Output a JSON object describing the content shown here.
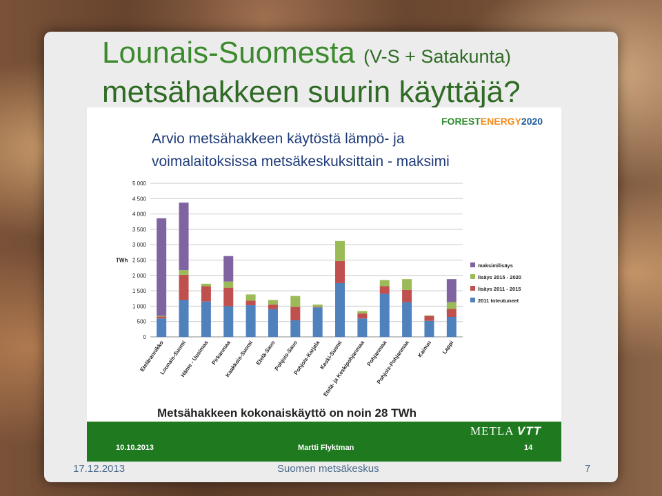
{
  "slide": {
    "title_line1": "Lounais-Suomesta",
    "title_line1_sub": "(V-S + Satakunta)",
    "title_line2": "metsähakkeen suurin käyttäjä?",
    "footer_date": "17.12.2013",
    "footer_org": "Suomen metsäkeskus",
    "footer_page": "7"
  },
  "inner_slide": {
    "logo_forest": "FOREST",
    "logo_energy": "ENERGY",
    "logo_year": "2020",
    "heading_line1": "Arvio metsähakkeen käytöstä lämpö- ja",
    "heading_line2": "voimalaitoksissa metsäkeskuksittain - maksimi",
    "note": "Metsähakkeen kokonaiskäyttö on noin 28 TWh",
    "footer_date": "10.10.2013",
    "footer_author": "Martti Flyktman",
    "footer_page": "14",
    "footer_logo": "METLA",
    "footer_logo2": "VTT"
  },
  "chart_data": {
    "type": "bar",
    "stacked": true,
    "ylabel": "TWh",
    "ylim": [
      0,
      5000
    ],
    "yticks": [
      "0",
      "500",
      "1 000",
      "1 500",
      "2 000",
      "2 500",
      "3 000",
      "3 500",
      "4 000",
      "4 500",
      "5 000"
    ],
    "grid": true,
    "legend_position": "right",
    "categories": [
      "Etelärannikko",
      "Lounais-Suomi",
      "Häme - Uusimaa",
      "Pirkanmaa",
      "Kaakkois-Suomi",
      "Etelä-Savo",
      "Pohjois-Savo",
      "Pohjois-Karjala",
      "Keski-Suomi",
      "Etelä- ja Keskipohjanmaa",
      "Pohjanmaa",
      "Pohjois-Pohjanmaa",
      "Kainuu",
      "Lappi"
    ],
    "series": [
      {
        "name": "2011 toteutuneet",
        "color": "#4f81bd",
        "values": [
          600,
          1200,
          1150,
          1000,
          1030,
          900,
          540,
          960,
          1750,
          600,
          1400,
          1130,
          520,
          650
        ]
      },
      {
        "name": "lisäys 2011 - 2015",
        "color": "#c0504d",
        "values": [
          60,
          820,
          500,
          600,
          150,
          150,
          440,
          20,
          720,
          160,
          250,
          400,
          160,
          260
        ]
      },
      {
        "name": "lisäys 2015 - 2020",
        "color": "#9bbb59",
        "values": [
          20,
          150,
          80,
          200,
          200,
          150,
          350,
          70,
          650,
          80,
          200,
          350,
          20,
          220
        ]
      },
      {
        "name": "maksimilisäys",
        "color": "#8064a2",
        "values": [
          3180,
          2200,
          0,
          830,
          0,
          0,
          0,
          0,
          0,
          0,
          0,
          0,
          0,
          750
        ]
      }
    ]
  }
}
